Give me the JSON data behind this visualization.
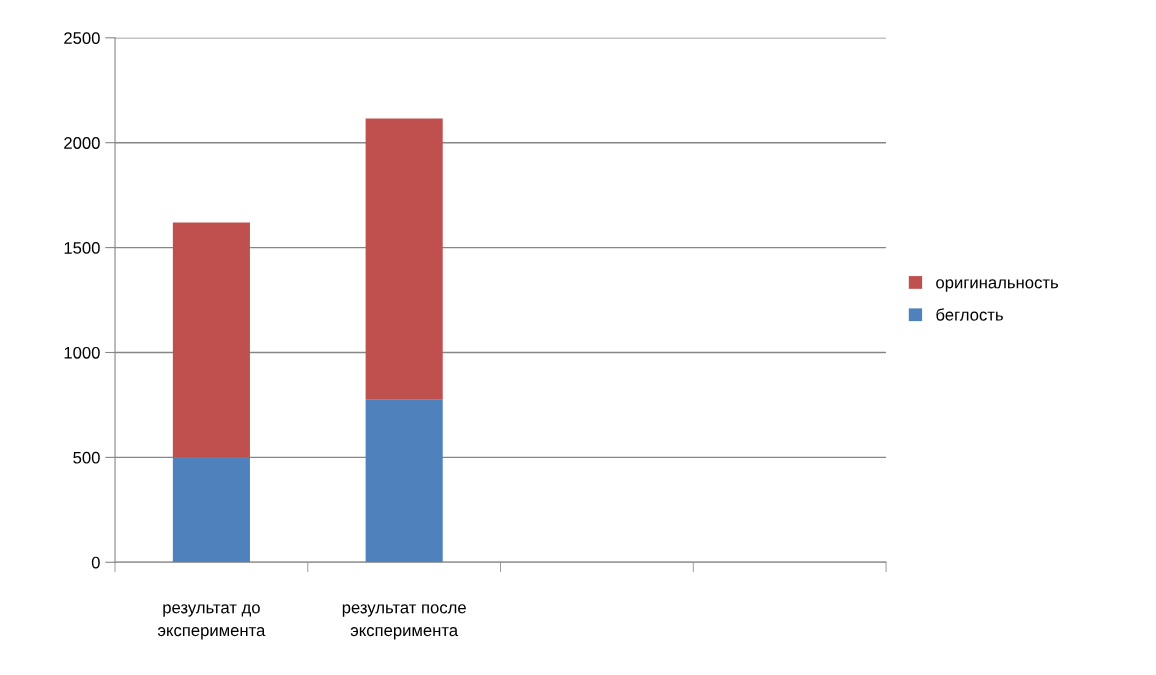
{
  "chart_data": {
    "type": "bar",
    "stacked": true,
    "categories": [
      "результат до эксперимента",
      "результат после эксперимента",
      null,
      null
    ],
    "series": [
      {
        "name": "беглость",
        "color": "#4f81bd",
        "values": [
          500,
          775,
          null,
          null
        ]
      },
      {
        "name": "оригинальность",
        "color": "#c0504d",
        "values": [
          1120,
          1340,
          null,
          null
        ]
      }
    ],
    "ylim": [
      0,
      2500
    ],
    "yticks": [
      0,
      500,
      1000,
      1500,
      2000,
      2500
    ],
    "grid": "y",
    "legend": "right"
  }
}
